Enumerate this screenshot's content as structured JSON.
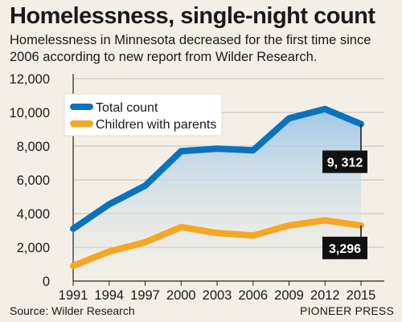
{
  "header": {
    "title": "Homelessness, single-night count",
    "subtitle": "Homelessness in Minnesota decreased for the first time since 2006 according to new report from Wilder Research."
  },
  "footer": {
    "source": "Source: Wilder Research",
    "credit": "PIONEER PRESS"
  },
  "colors": {
    "total": "#0a73bd",
    "children": "#f5a623",
    "area_top": "#9cc6e8",
    "area_bottom": "#f3efe6",
    "callout_bg": "#111111",
    "callout_text": "#ffffff",
    "grid": "#bfbfbf",
    "axis": "#222222"
  },
  "chart_data": {
    "type": "line",
    "categories": [
      "1991",
      "1994",
      "1997",
      "2000",
      "2003",
      "2006",
      "2009",
      "2012",
      "2015"
    ],
    "series": [
      {
        "name": "Total count",
        "values": [
          3100,
          4550,
          5650,
          7700,
          7850,
          7750,
          9650,
          10200,
          9312
        ]
      },
      {
        "name": "Children with parents",
        "values": [
          900,
          1750,
          2300,
          3200,
          2850,
          2700,
          3300,
          3600,
          3296
        ]
      }
    ],
    "ylim": [
      0,
      12000
    ],
    "yticks": [
      "0",
      "2,000",
      "4,000",
      "6,000",
      "8,000",
      "10,000",
      "12,000"
    ],
    "ytick_values": [
      0,
      2000,
      4000,
      6000,
      8000,
      10000,
      12000
    ],
    "grid": true,
    "legend": "top-left",
    "callouts": [
      {
        "series": 0,
        "index": 8,
        "text": "9, 312"
      },
      {
        "series": 1,
        "index": 8,
        "text": "3,296"
      }
    ]
  }
}
